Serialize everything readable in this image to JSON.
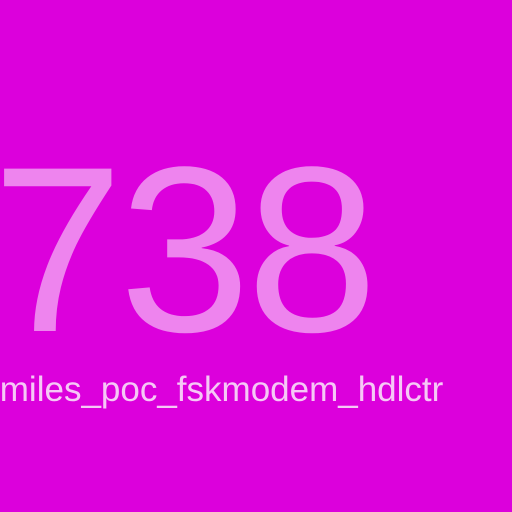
{
  "tile": {
    "number": "738",
    "caption": "lmiles_poc_fskmodem_hdlctr",
    "background_color": "#dc00dc",
    "number_color": "#ee84ee",
    "caption_color": "#f6c8f6"
  }
}
